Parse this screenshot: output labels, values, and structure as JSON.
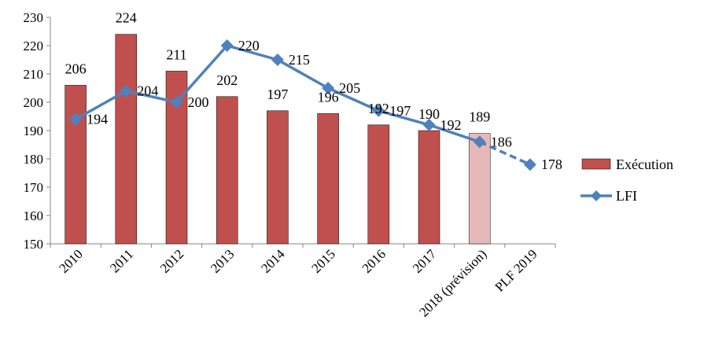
{
  "chart_data": {
    "type": "bar",
    "categories": [
      "2010",
      "2011",
      "2012",
      "2013",
      "2014",
      "2015",
      "2016",
      "2017",
      "2018 (prévision)",
      "PLF 2019"
    ],
    "ylim": [
      150,
      230
    ],
    "yticks": [
      150,
      160,
      170,
      180,
      190,
      200,
      210,
      220,
      230
    ],
    "grid": false,
    "legend_position": "right",
    "series": [
      {
        "name": "Exécution",
        "type": "bar",
        "color": "#C0504D",
        "values": [
          206,
          224,
          211,
          202,
          197,
          196,
          192,
          190,
          189,
          null
        ],
        "highlight": {
          "category": "2018 (prévision)",
          "color": "#E6B9B8"
        }
      },
      {
        "name": "LFI",
        "type": "line",
        "color": "#4F81BD",
        "marker": "diamond",
        "values": [
          194,
          204,
          200,
          220,
          215,
          205,
          197,
          192,
          186,
          178
        ],
        "dashed_from_category": "2018 (prévision)"
      }
    ]
  }
}
